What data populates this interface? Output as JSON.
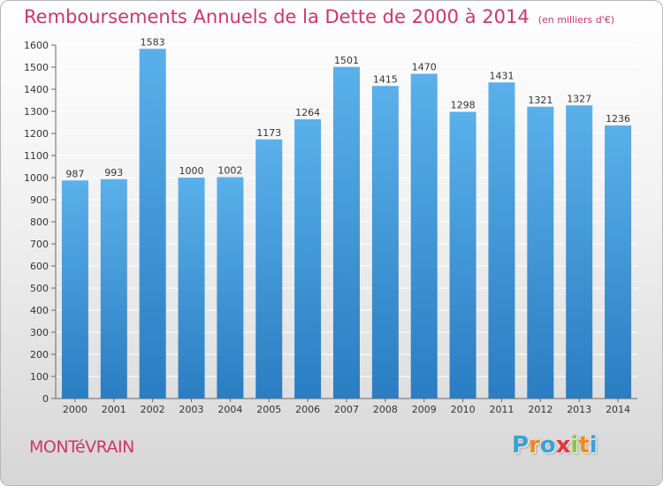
{
  "title": "Remboursements Annuels de la Dette de 2000 à 2014",
  "unit": "(en milliers d'€)",
  "city": "MONTéVRAIN",
  "brand": {
    "letters": [
      "P",
      "r",
      "o",
      "x",
      "i",
      "t",
      "i"
    ],
    "colors": [
      "#3aa0d8",
      "#f08a1c",
      "#3aa0d8",
      "#e8343a",
      "#8dc63f",
      "#f08a1c",
      "#3aa0d8"
    ]
  },
  "colors": {
    "title": "#d2346b",
    "bar_light": "#5ab0ea",
    "bar_dark": "#2a7dc2",
    "grid": "#ffffff"
  },
  "chart_data": {
    "type": "bar",
    "categories": [
      "2000",
      "2001",
      "2002",
      "2003",
      "2004",
      "2005",
      "2006",
      "2007",
      "2008",
      "2009",
      "2010",
      "2011",
      "2012",
      "2013",
      "2014"
    ],
    "values": [
      987,
      993,
      1583,
      1000,
      1002,
      1173,
      1264,
      1501,
      1415,
      1470,
      1298,
      1431,
      1321,
      1327,
      1236
    ],
    "ylim": [
      0,
      1600
    ],
    "yticks": [
      0,
      100,
      200,
      300,
      400,
      500,
      600,
      700,
      800,
      900,
      1000,
      1100,
      1200,
      1300,
      1400,
      1500,
      1600
    ],
    "grid": true
  }
}
